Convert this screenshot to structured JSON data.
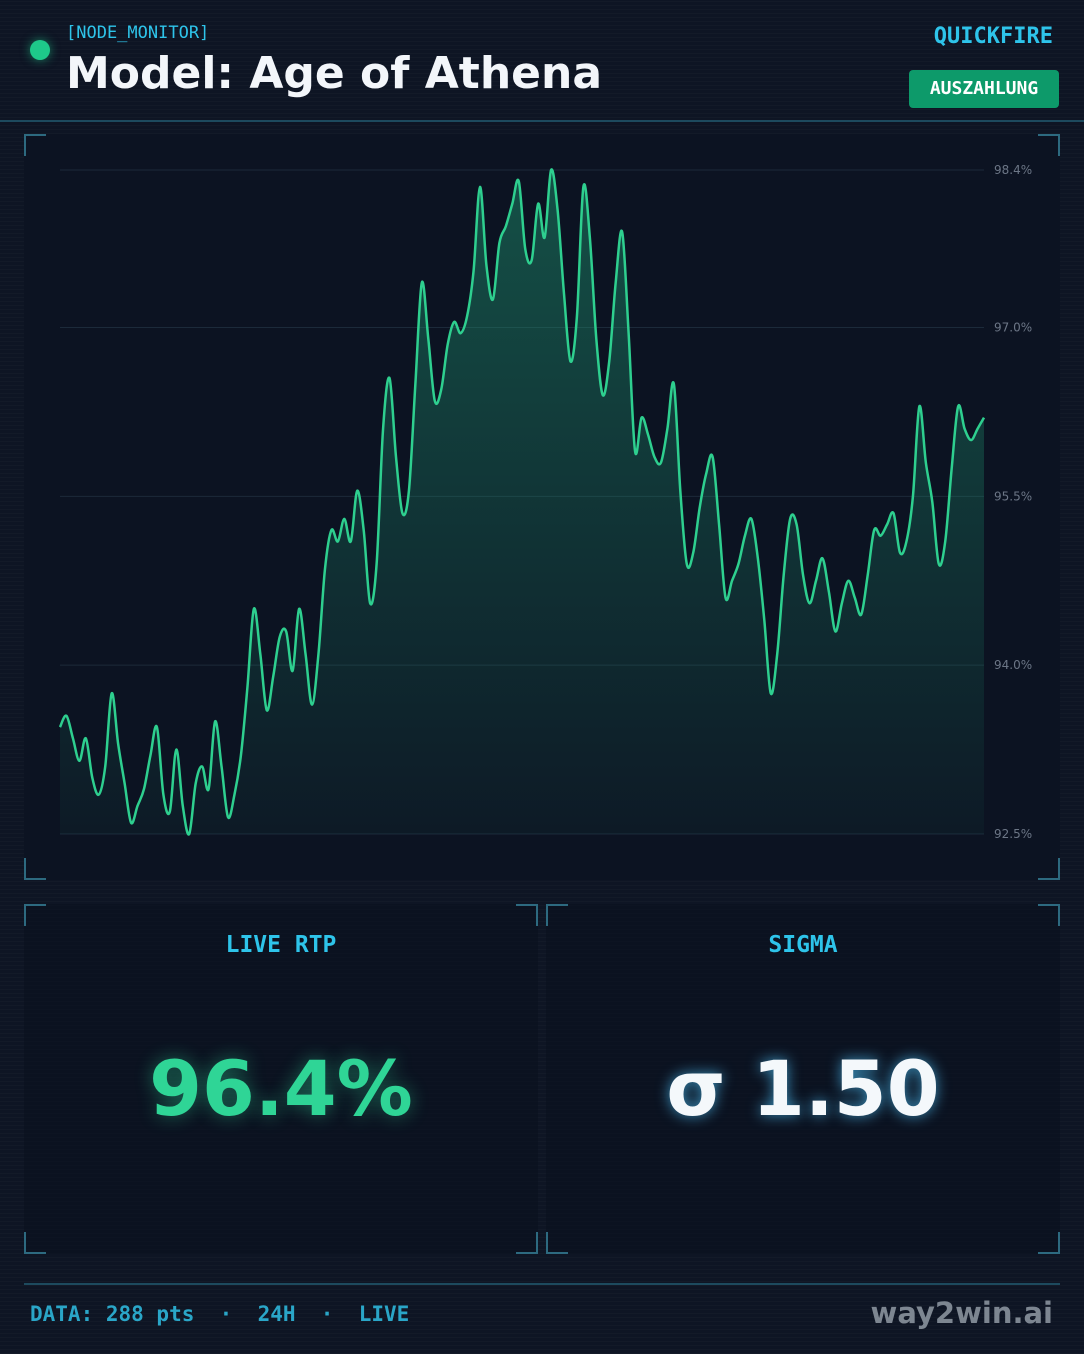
{
  "header": {
    "tag": "[NODE_MONITOR]",
    "title": "Model: Age of Athena",
    "provider": "QUICKFIRE",
    "badge": "AUSZAHLUNG"
  },
  "chart_data": {
    "type": "area",
    "title": "",
    "xlabel": "",
    "ylabel": "",
    "ylim": [
      92.5,
      98.4
    ],
    "yticks": [
      "98.4%",
      "97.0%",
      "95.5%",
      "94.0%",
      "92.5%"
    ],
    "ytick_values": [
      98.4,
      97.0,
      95.5,
      94.0,
      92.5
    ],
    "grid": true,
    "line_color": "#2ecf8f",
    "values": [
      93.45,
      93.55,
      93.35,
      93.15,
      93.35,
      93.0,
      92.85,
      93.1,
      93.75,
      93.3,
      92.95,
      92.6,
      92.75,
      92.9,
      93.2,
      93.45,
      92.85,
      92.7,
      93.25,
      92.75,
      92.5,
      92.95,
      93.1,
      92.9,
      93.5,
      93.1,
      92.65,
      92.85,
      93.2,
      93.8,
      94.5,
      94.1,
      93.6,
      93.9,
      94.25,
      94.3,
      93.95,
      94.5,
      94.1,
      93.65,
      94.1,
      94.85,
      95.2,
      95.1,
      95.3,
      95.1,
      95.55,
      95.2,
      94.55,
      94.9,
      96.1,
      96.55,
      95.85,
      95.35,
      95.55,
      96.5,
      97.4,
      96.9,
      96.35,
      96.45,
      96.85,
      97.05,
      96.95,
      97.1,
      97.5,
      98.25,
      97.55,
      97.25,
      97.75,
      97.9,
      98.1,
      98.3,
      97.7,
      97.6,
      98.1,
      97.8,
      98.4,
      98.05,
      97.3,
      96.7,
      97.1,
      98.25,
      97.8,
      96.9,
      96.4,
      96.7,
      97.4,
      97.85,
      96.95,
      95.9,
      96.2,
      96.05,
      95.85,
      95.8,
      96.1,
      96.5,
      95.55,
      94.9,
      95.0,
      95.4,
      95.7,
      95.85,
      95.25,
      94.6,
      94.75,
      94.9,
      95.15,
      95.3,
      94.95,
      94.4,
      93.75,
      94.1,
      94.8,
      95.3,
      95.25,
      94.8,
      94.55,
      94.75,
      94.95,
      94.65,
      94.3,
      94.55,
      94.75,
      94.6,
      94.45,
      94.8,
      95.2,
      95.15,
      95.25,
      95.35,
      95.0,
      95.1,
      95.5,
      96.3,
      95.8,
      95.45,
      94.9,
      95.1,
      95.75,
      96.3,
      96.1,
      96.0,
      96.1,
      96.2
    ]
  },
  "stats": {
    "rtp_label": "LIVE RTP",
    "rtp_value": "96.4%",
    "sigma_label": "SIGMA",
    "sigma_value": "σ 1.50"
  },
  "footer": {
    "info": "DATA: 288 pts  ·  24H  ·  LIVE",
    "brand": "way2win.ai"
  }
}
